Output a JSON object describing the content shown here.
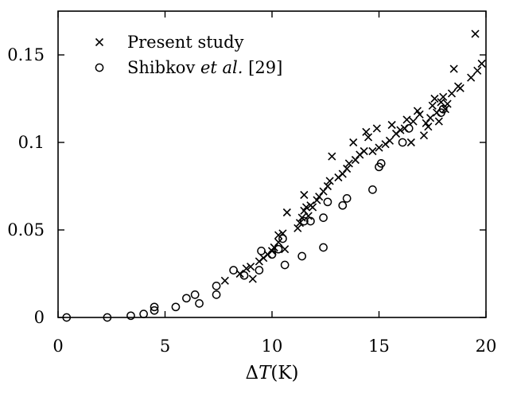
{
  "chart_data": {
    "type": "scatter",
    "xlabel_prefix": "Δ",
    "xlabel_var": "T",
    "xlabel_unit": "(K)",
    "ylabel": "",
    "xlim": [
      0,
      20
    ],
    "ylim": [
      0,
      0.175
    ],
    "x_ticks": [
      {
        "value": 0,
        "label": "0"
      },
      {
        "value": 5,
        "label": "5"
      },
      {
        "value": 10,
        "label": "10"
      },
      {
        "value": 15,
        "label": "15"
      },
      {
        "value": 20,
        "label": "20"
      }
    ],
    "y_ticks": [
      {
        "value": 0,
        "label": "0"
      },
      {
        "value": 0.05,
        "label": "0.05"
      },
      {
        "value": 0.1,
        "label": "0.1"
      },
      {
        "value": 0.15,
        "label": "0.15"
      }
    ],
    "grid": false,
    "legend_position": "top-left",
    "series": [
      {
        "name": "Present study",
        "marker": "cross",
        "points": [
          [
            7.8,
            0.021
          ],
          [
            8.5,
            0.025
          ],
          [
            8.8,
            0.028
          ],
          [
            9.0,
            0.029
          ],
          [
            9.1,
            0.022
          ],
          [
            9.4,
            0.032
          ],
          [
            9.6,
            0.034
          ],
          [
            9.8,
            0.036
          ],
          [
            10.0,
            0.038
          ],
          [
            10.1,
            0.04
          ],
          [
            10.3,
            0.043
          ],
          [
            10.3,
            0.047
          ],
          [
            10.5,
            0.048
          ],
          [
            10.7,
            0.06
          ],
          [
            10.6,
            0.039
          ],
          [
            11.2,
            0.051
          ],
          [
            11.3,
            0.054
          ],
          [
            11.4,
            0.057
          ],
          [
            11.5,
            0.061
          ],
          [
            11.6,
            0.063
          ],
          [
            11.8,
            0.064
          ],
          [
            11.9,
            0.063
          ],
          [
            11.5,
            0.07
          ],
          [
            11.7,
            0.058
          ],
          [
            12.1,
            0.067
          ],
          [
            12.2,
            0.069
          ],
          [
            12.4,
            0.072
          ],
          [
            12.6,
            0.075
          ],
          [
            12.7,
            0.078
          ],
          [
            12.8,
            0.092
          ],
          [
            13.1,
            0.08
          ],
          [
            13.3,
            0.082
          ],
          [
            13.5,
            0.085
          ],
          [
            13.6,
            0.088
          ],
          [
            13.8,
            0.1
          ],
          [
            13.9,
            0.09
          ],
          [
            14.1,
            0.093
          ],
          [
            14.3,
            0.095
          ],
          [
            14.4,
            0.106
          ],
          [
            14.5,
            0.103
          ],
          [
            14.7,
            0.095
          ],
          [
            14.9,
            0.108
          ],
          [
            15.0,
            0.097
          ],
          [
            15.3,
            0.099
          ],
          [
            15.5,
            0.101
          ],
          [
            15.6,
            0.11
          ],
          [
            15.8,
            0.105
          ],
          [
            16.0,
            0.107
          ],
          [
            16.2,
            0.108
          ],
          [
            16.3,
            0.113
          ],
          [
            16.5,
            0.1
          ],
          [
            16.6,
            0.112
          ],
          [
            16.8,
            0.118
          ],
          [
            16.9,
            0.116
          ],
          [
            17.1,
            0.104
          ],
          [
            17.3,
            0.109
          ],
          [
            17.4,
            0.114
          ],
          [
            17.5,
            0.121
          ],
          [
            17.6,
            0.125
          ],
          [
            17.7,
            0.117
          ],
          [
            17.8,
            0.112
          ],
          [
            17.9,
            0.123
          ],
          [
            18.0,
            0.126
          ],
          [
            18.1,
            0.119
          ],
          [
            18.4,
            0.128
          ],
          [
            18.5,
            0.142
          ],
          [
            18.7,
            0.132
          ],
          [
            18.8,
            0.131
          ],
          [
            19.3,
            0.137
          ],
          [
            19.5,
            0.162
          ],
          [
            19.6,
            0.141
          ],
          [
            19.8,
            0.145
          ],
          [
            18.2,
            0.122
          ],
          [
            17.2,
            0.111
          ]
        ]
      },
      {
        "name": "Shibkov",
        "name_italic": "et al.",
        "name_ref": "[29]",
        "marker": "circle",
        "points": [
          [
            0.4,
            0.0
          ],
          [
            2.3,
            0.0
          ],
          [
            3.4,
            0.001
          ],
          [
            4.0,
            0.002
          ],
          [
            4.5,
            0.004
          ],
          [
            4.5,
            0.006
          ],
          [
            5.5,
            0.006
          ],
          [
            6.0,
            0.011
          ],
          [
            6.4,
            0.013
          ],
          [
            6.6,
            0.008
          ],
          [
            7.4,
            0.018
          ],
          [
            7.4,
            0.013
          ],
          [
            8.2,
            0.027
          ],
          [
            8.7,
            0.024
          ],
          [
            9.4,
            0.027
          ],
          [
            9.5,
            0.038
          ],
          [
            10.0,
            0.036
          ],
          [
            10.3,
            0.039
          ],
          [
            10.5,
            0.045
          ],
          [
            10.6,
            0.03
          ],
          [
            11.4,
            0.035
          ],
          [
            11.5,
            0.055
          ],
          [
            11.8,
            0.055
          ],
          [
            12.4,
            0.04
          ],
          [
            12.4,
            0.057
          ],
          [
            12.6,
            0.066
          ],
          [
            13.3,
            0.064
          ],
          [
            13.5,
            0.068
          ],
          [
            14.7,
            0.073
          ],
          [
            15.0,
            0.086
          ],
          [
            15.1,
            0.088
          ],
          [
            16.1,
            0.1
          ],
          [
            16.4,
            0.108
          ],
          [
            17.9,
            0.117
          ],
          [
            18.0,
            0.119
          ]
        ]
      }
    ]
  }
}
